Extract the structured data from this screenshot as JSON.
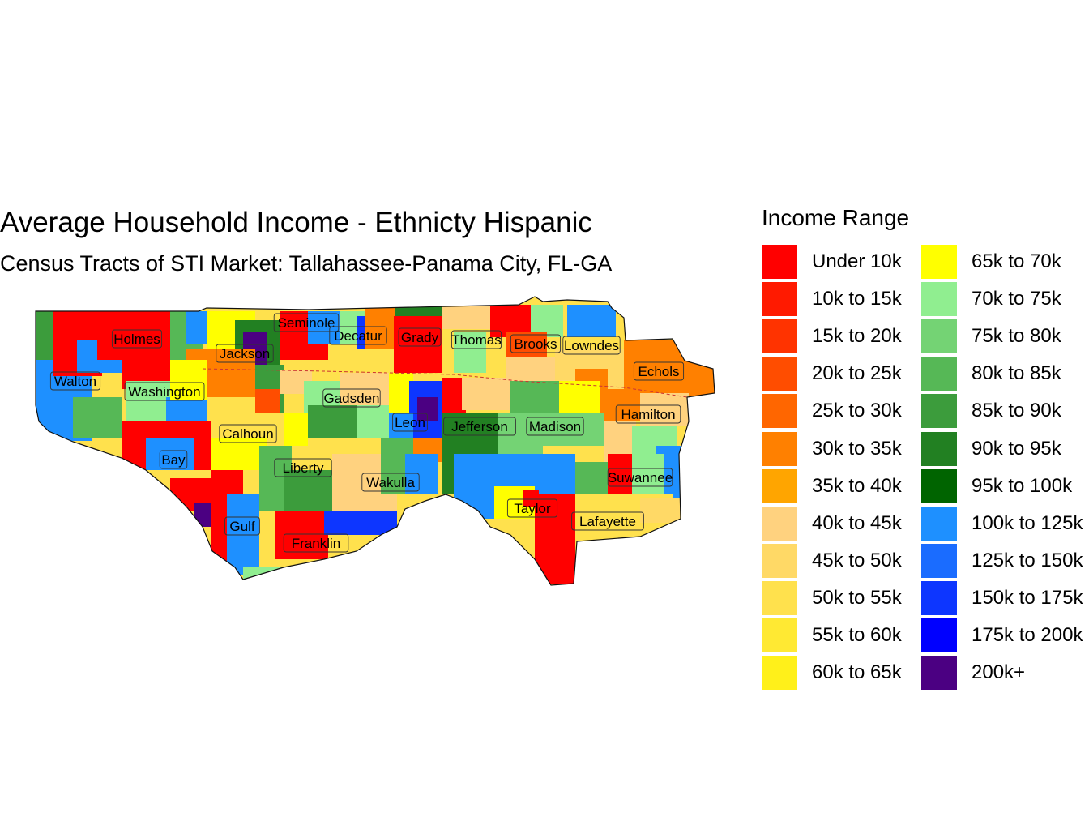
{
  "title": "Average Household Income - Ethnicty Hispanic",
  "subtitle": "Census Tracts of STI Market: Tallahassee-Panama City, FL-GA",
  "legend": {
    "title": "Income Range",
    "items": [
      {
        "label": "Under 10k",
        "color": "#ff0000"
      },
      {
        "label": "10k to 15k",
        "color": "#ff1a00"
      },
      {
        "label": "15k to 20k",
        "color": "#ff3300"
      },
      {
        "label": "20k to 25k",
        "color": "#ff4d00"
      },
      {
        "label": "25k to 30k",
        "color": "#ff6600"
      },
      {
        "label": "30k to 35k",
        "color": "#ff8000"
      },
      {
        "label": "35k to 40k",
        "color": "#ffa500"
      },
      {
        "label": "40k to 45k",
        "color": "#ffd27f"
      },
      {
        "label": "45k to 50k",
        "color": "#ffd966"
      },
      {
        "label": "50k to 55k",
        "color": "#ffe14d"
      },
      {
        "label": "55k to 60k",
        "color": "#ffe933"
      },
      {
        "label": "60k to 65k",
        "color": "#fff01a"
      },
      {
        "label": "65k to 70k",
        "color": "#ffff00"
      },
      {
        "label": "70k to 75k",
        "color": "#90ee90"
      },
      {
        "label": "75k to 80k",
        "color": "#74d374"
      },
      {
        "label": "80k to 85k",
        "color": "#56b856"
      },
      {
        "label": "85k to 90k",
        "color": "#3c9c3c"
      },
      {
        "label": "90k to 95k",
        "color": "#228022"
      },
      {
        "label": "95k to 100k",
        "color": "#006400"
      },
      {
        "label": "100k to 125k",
        "color": "#1e90ff"
      },
      {
        "label": "125k to 150k",
        "color": "#1a6cff"
      },
      {
        "label": "150k to 175k",
        "color": "#0d36ff"
      },
      {
        "label": "175k to 200k",
        "color": "#0000ff"
      },
      {
        "label": "200k+",
        "color": "#4b0082"
      }
    ]
  },
  "counties": [
    "Holmes",
    "Seminole",
    "Decatur",
    "Grady",
    "Thomas",
    "Brooks",
    "Lowndes",
    "Jackson",
    "Echols",
    "Walton",
    "Washington",
    "Gadsden",
    "Hamilton",
    "Leon",
    "Jefferson",
    "Madison",
    "Calhoun",
    "Bay",
    "Liberty",
    "Suwannee",
    "Wakulla",
    "Taylor",
    "Lafayette",
    "Gulf",
    "Franklin"
  ]
}
